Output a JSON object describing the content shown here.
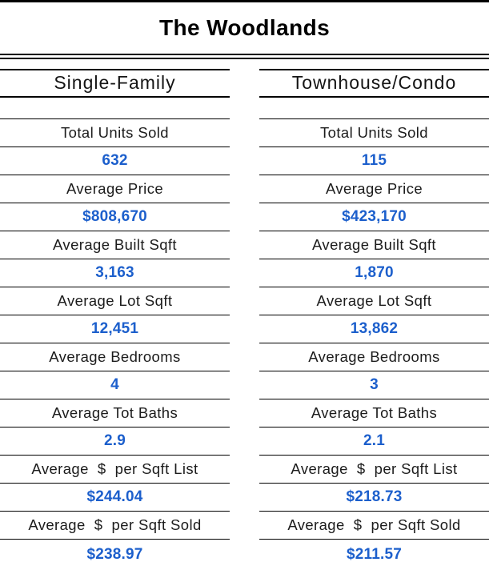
{
  "title": "The Woodlands",
  "colors": {
    "value_blue": "#1c5fcc",
    "label_ink": "#1c1c1c",
    "rule_black": "#000000",
    "background": "#ffffff"
  },
  "columns": [
    {
      "header": "Single-Family",
      "rows": [
        {
          "label": "Total Units Sold",
          "value": "632"
        },
        {
          "label": "Average Price",
          "value": "$808,670"
        },
        {
          "label": "Average Built Sqft",
          "value": "3,163"
        },
        {
          "label": "Average Lot Sqft",
          "value": "12,451"
        },
        {
          "label": "Average Bedrooms",
          "value": "4"
        },
        {
          "label": "Average Tot Baths",
          "value": "2.9"
        },
        {
          "label": "Average  $  per Sqft List",
          "value": "$244.04"
        },
        {
          "label": "Average  $  per Sqft Sold",
          "value": "$238.97"
        }
      ]
    },
    {
      "header": "Townhouse/Condo",
      "rows": [
        {
          "label": "Total Units Sold",
          "value": "115"
        },
        {
          "label": "Average Price",
          "value": "$423,170"
        },
        {
          "label": "Average Built Sqft",
          "value": "1,870"
        },
        {
          "label": "Average Lot Sqft",
          "value": "13,862"
        },
        {
          "label": "Average Bedrooms",
          "value": "3"
        },
        {
          "label": "Average Tot Baths",
          "value": "2.1"
        },
        {
          "label": "Average  $  per Sqft List",
          "value": "$218.73"
        },
        {
          "label": "Average  $  per Sqft Sold",
          "value": "$211.57"
        }
      ]
    }
  ],
  "chart_data": {
    "type": "table",
    "title": "The Woodlands",
    "categories": [
      "Total Units Sold",
      "Average Price",
      "Average Built Sqft",
      "Average Lot Sqft",
      "Average Bedrooms",
      "Average Tot Baths",
      "Average  $  per Sqft List",
      "Average  $  per Sqft Sold"
    ],
    "series": [
      {
        "name": "Single-Family",
        "values": [
          "632",
          "$808,670",
          "3,163",
          "12,451",
          "4",
          "2.9",
          "$244.04",
          "$238.97"
        ]
      },
      {
        "name": "Townhouse/Condo",
        "values": [
          "115",
          "$423,170",
          "1,870",
          "13,862",
          "3",
          "2.1",
          "$218.73",
          "$211.57"
        ]
      }
    ],
    "layout": {
      "value_text_color": "#1c5fcc",
      "label_text_color": "#1c1c1c",
      "grid": "horizontal-rules-only",
      "columns_side_by_side": true
    }
  }
}
